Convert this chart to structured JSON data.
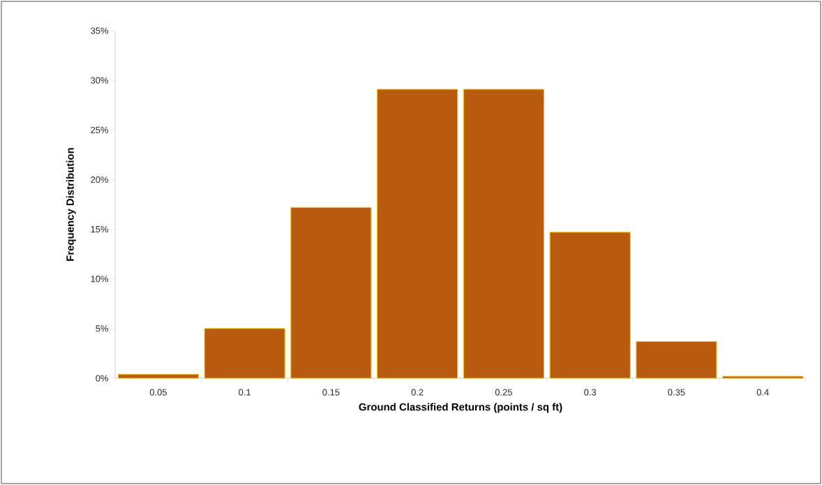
{
  "chart_data": {
    "type": "bar",
    "xlabel": "Ground Classified Returns (points / sq  ft)",
    "ylabel": "Frequency Distribution",
    "categories": [
      "0.05",
      "0.1",
      "0.15",
      "0.2",
      "0.25",
      "0.3",
      "0.35",
      "0.4"
    ],
    "values": [
      0.4,
      5.0,
      17.2,
      29.1,
      29.1,
      14.7,
      3.7,
      0.2
    ],
    "color": "#b85a10",
    "ylim": [
      0,
      35
    ],
    "yticks": [
      {
        "value": 0,
        "label": "0%"
      },
      {
        "value": 5,
        "label": "5%"
      },
      {
        "value": 10,
        "label": "10%"
      },
      {
        "value": 15,
        "label": "15%"
      },
      {
        "value": 20,
        "label": "20%"
      },
      {
        "value": 25,
        "label": "25%"
      },
      {
        "value": 30,
        "label": "30%"
      },
      {
        "value": 35,
        "label": "35%"
      }
    ],
    "grid": false
  }
}
